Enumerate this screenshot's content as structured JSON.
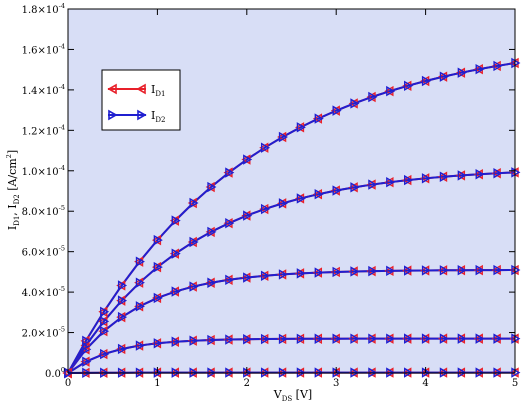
{
  "chart_data": {
    "type": "line",
    "xlabel": {
      "main": "V",
      "sub": "DS",
      "tail": " [V]"
    },
    "ylabel": {
      "p1": "I",
      "s1": "D1",
      "mid": ", I",
      "s2": "D2",
      "tail": " [A/cm",
      "sup": "2",
      "end": "]"
    },
    "xlim": [
      0,
      5
    ],
    "ylim": [
      0,
      0.00018
    ],
    "x_ticks": [
      {
        "value": 0,
        "label": "0"
      },
      {
        "value": 1,
        "label": "1"
      },
      {
        "value": 2,
        "label": "2"
      },
      {
        "value": 3,
        "label": "3"
      },
      {
        "value": 4,
        "label": "4"
      },
      {
        "value": 5,
        "label": "5"
      }
    ],
    "y_ticks": [
      {
        "value": 0,
        "mant": "0.0",
        "exp": "0"
      },
      {
        "value": 2e-05,
        "mant": "2.0×10",
        "exp": "-5"
      },
      {
        "value": 4e-05,
        "mant": "4.0×10",
        "exp": "-5"
      },
      {
        "value": 6e-05,
        "mant": "6.0×10",
        "exp": "-5"
      },
      {
        "value": 8e-05,
        "mant": "8.0×10",
        "exp": "-5"
      },
      {
        "value": 0.0001,
        "mant": "1.0×10",
        "exp": "-4"
      },
      {
        "value": 0.00012,
        "mant": "1.2×10",
        "exp": "-4"
      },
      {
        "value": 0.00014,
        "mant": "1.4×10",
        "exp": "-4"
      },
      {
        "value": 0.00016,
        "mant": "1.6×10",
        "exp": "-4"
      },
      {
        "value": 0.00018,
        "mant": "1.8×10",
        "exp": "-4"
      }
    ],
    "x": [
      0,
      0.2,
      0.4,
      0.6,
      0.8,
      1.0,
      1.2,
      1.4,
      1.6,
      1.8,
      2.0,
      2.2,
      2.4,
      2.6,
      2.8,
      3.0,
      3.2,
      3.4,
      3.6,
      3.8,
      4.0,
      4.2,
      4.4,
      4.6,
      4.8,
      5.0
    ],
    "curve_saturation": [
      2e-07,
      1.7e-05,
      5.1e-05,
      0.000102,
      0.000167
    ],
    "curve_rate": [
      2.2,
      2.0,
      1.3,
      0.72,
      0.5
    ],
    "series": [
      {
        "name": "I",
        "sub": "D1",
        "color": "#e8202a",
        "marker": "triangle-left"
      },
      {
        "name": "I",
        "sub": "D2",
        "color": "#1f1fd0",
        "marker": "triangle-right"
      }
    ],
    "legend_position": "upper-left",
    "background_color": "#d8def6",
    "grid": false
  }
}
